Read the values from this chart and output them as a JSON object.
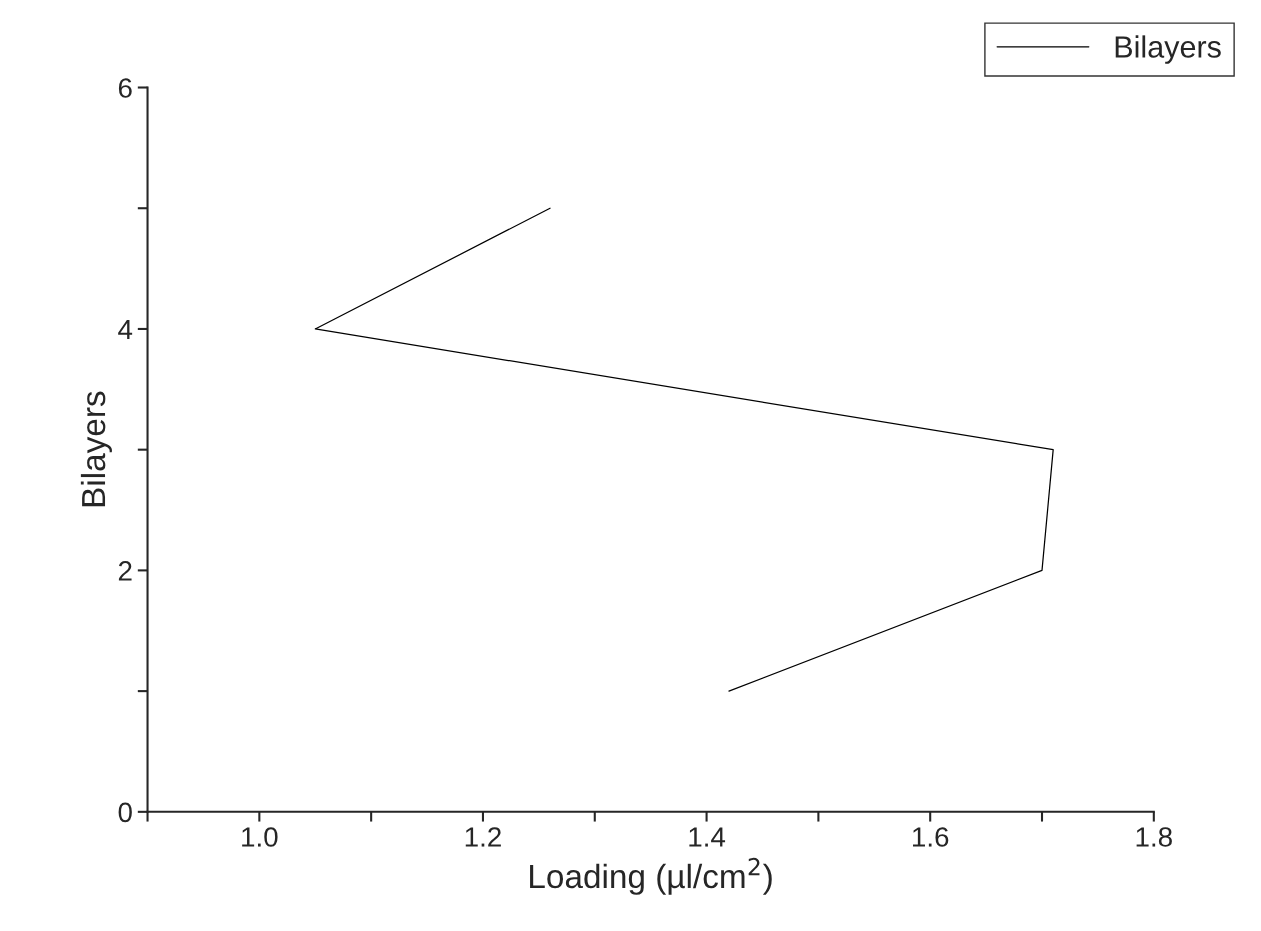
{
  "chart_data": {
    "type": "line",
    "xlabel": "Loading (µl/cm$^{2}$)",
    "ylabel": "Bilayers",
    "series": [
      {
        "name": "Bilayers",
        "color": "#000000",
        "x": [
          1.42,
          1.7,
          1.71,
          1.05,
          1.26
        ],
        "values": [
          1,
          2,
          3,
          4,
          5
        ]
      }
    ],
    "xlim": [
      0.9,
      1.8
    ],
    "xticks": [
      {
        "value": 0.9,
        "label": null
      },
      {
        "value": 1.0,
        "label": "1.0"
      },
      {
        "value": 1.1,
        "label": null
      },
      1.2,
      {
        "value": 1.3,
        "label": null
      },
      1.4,
      {
        "value": 1.5,
        "label": null
      },
      1.6,
      {
        "value": 1.7,
        "label": null
      },
      1.8
    ],
    "ylim": [
      0,
      6
    ],
    "yticks": [
      0,
      {
        "value": 1,
        "label": null
      },
      2,
      {
        "value": 3,
        "label": null
      },
      4,
      {
        "value": 5,
        "label": null
      },
      6
    ],
    "grid": false,
    "legend": "top right",
    "marker": "none",
    "line_style": "solid"
  }
}
